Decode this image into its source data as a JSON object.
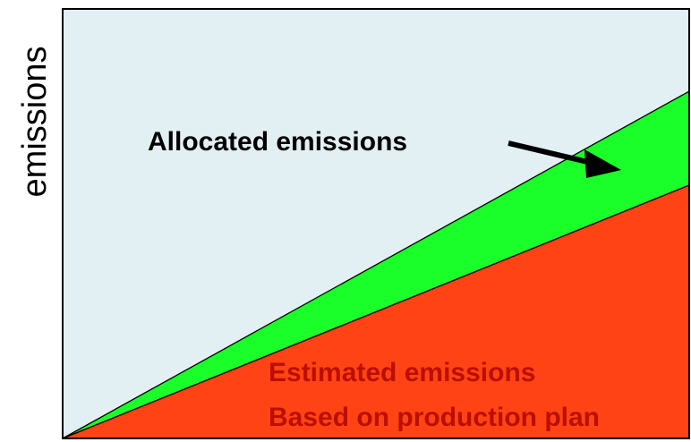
{
  "diagram": {
    "y_axis_label": "emissions",
    "annotations": {
      "allocated": "Allocated emissions",
      "estimated_line1": "Estimated emissions",
      "estimated_line2": "Based on production plan"
    },
    "regions": [
      {
        "name": "background",
        "color": "#e3f0f3"
      },
      {
        "name": "allocated-emissions",
        "color": "#1aff2a"
      },
      {
        "name": "estimated-emissions",
        "color": "#ff4315"
      }
    ],
    "text_colors": {
      "allocated": "#000000",
      "estimated": "#ba0f00"
    }
  }
}
